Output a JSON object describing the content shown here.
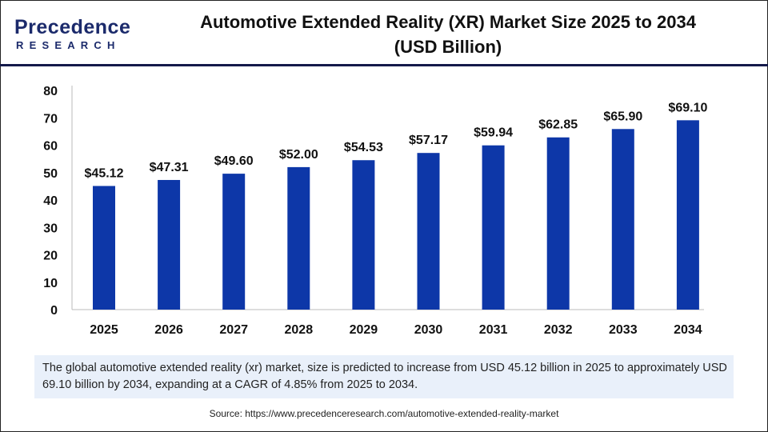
{
  "logo": {
    "line1": "Precedence",
    "line2": "RESEARCH"
  },
  "title_line1": "Automotive Extended Reality (XR) Market Size 2025 to 2034",
  "title_line2": "(USD Billion)",
  "chart_data": {
    "type": "bar",
    "title": "Automotive Extended Reality (XR) Market Size 2025 to 2034 (USD Billion)",
    "categories": [
      "2025",
      "2026",
      "2027",
      "2028",
      "2029",
      "2030",
      "2031",
      "2032",
      "2033",
      "2034"
    ],
    "values": [
      45.12,
      47.31,
      49.6,
      52.0,
      54.53,
      57.17,
      59.94,
      62.85,
      65.9,
      69.1
    ],
    "data_labels": [
      "$45.12",
      "$47.31",
      "$49.60",
      "$52.00",
      "$54.53",
      "$57.17",
      "$59.94",
      "$62.85",
      "$65.90",
      "$69.10"
    ],
    "yticks": [
      0,
      10,
      20,
      30,
      40,
      50,
      60,
      70,
      80
    ],
    "ylim": [
      0,
      80
    ],
    "xlabel": "",
    "ylabel": "",
    "grid": false,
    "bar_color": "#0d37a8"
  },
  "note": "The global automotive extended reality (xr) market, size is predicted to increase from USD 45.12 billion in 2025 to approximately USD 69.10 billion by 2034, expanding at a CAGR of 4.85% from 2025 to 2034.",
  "source": "Source: https://www.precedenceresearch.com/automotive-extended-reality-market"
}
